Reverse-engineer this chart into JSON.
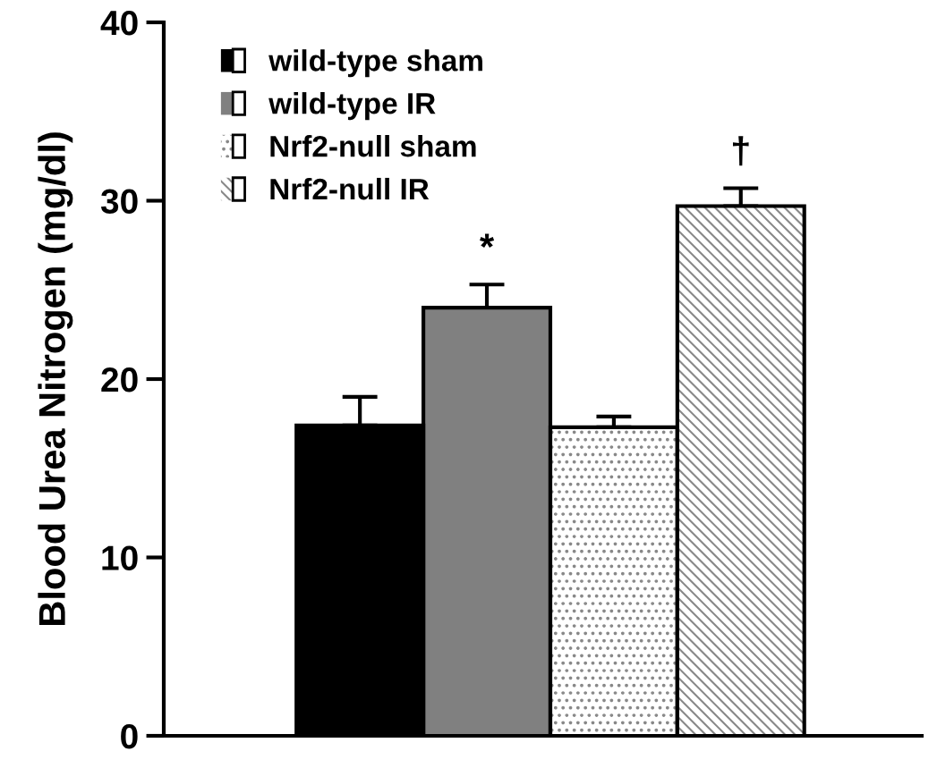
{
  "chart_data": {
    "type": "bar",
    "ylabel": "Blood Urea Nitrogen (mg/dl)",
    "categories": [
      null
    ],
    "series": [
      {
        "name": "wild-type sham",
        "color": "#000000",
        "values": [
          17.4
        ],
        "errors": [
          1.6
        ]
      },
      {
        "name": "wild-type IR",
        "color": "#808080",
        "values": [
          24.0
        ],
        "errors": [
          1.3
        ]
      },
      {
        "name": "Nrf2-null sham",
        "color": "#888888",
        "values": [
          17.3
        ],
        "errors": [
          0.6
        ]
      },
      {
        "name": "Nrf2-null IR",
        "color": "#888888",
        "values": [
          29.7
        ],
        "errors": [
          1.0
        ]
      }
    ],
    "ylim": [
      0,
      40
    ],
    "yticks": [
      0,
      10,
      20,
      30,
      40
    ],
    "grid": false,
    "legend": "top left",
    "annotations": [
      "*",
      "†"
    ]
  }
}
